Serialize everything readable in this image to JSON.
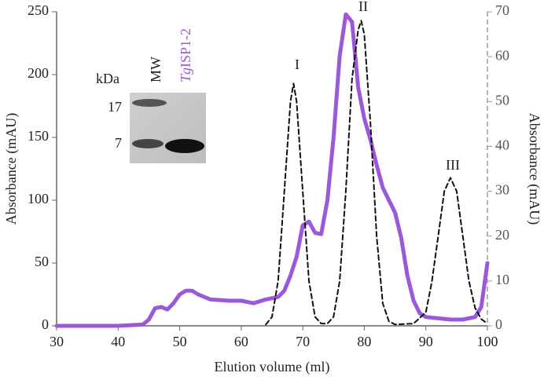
{
  "chart_data": {
    "type": "line",
    "xlabel": "Elution volume (ml)",
    "ylabel": "Absorbance (mAU)",
    "y2label": "Absorbance (mAU)",
    "xlim": [
      30,
      100
    ],
    "xticks": [
      30,
      40,
      50,
      60,
      70,
      80,
      90,
      100
    ],
    "ylim": [
      0,
      250
    ],
    "yticks": [
      0,
      50,
      100,
      150,
      200,
      250
    ],
    "y2lim": [
      0,
      70
    ],
    "y2ticks": [
      0,
      10,
      20,
      30,
      40,
      50,
      60,
      70
    ],
    "series": [
      {
        "color": "#9b59d9",
        "axis": "y",
        "dashed": false,
        "x": [
          30,
          40,
          44,
          45,
          46,
          47,
          48,
          49,
          50,
          51,
          52,
          53,
          55,
          58,
          60,
          62,
          64,
          66,
          67,
          68,
          69,
          70,
          71,
          72,
          73,
          74,
          75,
          76,
          77,
          78,
          79,
          80,
          81,
          82,
          83,
          84,
          85,
          86,
          87,
          88,
          89,
          90,
          92,
          94,
          96,
          98,
          99,
          100
        ],
        "values": [
          0,
          0,
          1,
          5,
          14,
          15,
          13,
          18,
          25,
          28,
          28,
          25,
          21,
          20,
          20,
          18,
          21,
          23,
          28,
          40,
          55,
          80,
          83,
          74,
          73,
          100,
          150,
          215,
          248,
          242,
          190,
          165,
          148,
          128,
          110,
          100,
          90,
          70,
          40,
          20,
          10,
          7,
          6,
          5,
          5,
          7,
          15,
          50
        ]
      },
      {
        "color": "#111111",
        "axis": "y2",
        "dashed": true,
        "x": [
          64,
          65,
          66,
          67,
          68,
          68.5,
          69,
          70,
          71,
          72,
          73,
          74,
          75,
          76,
          77,
          78,
          79,
          79.5,
          80,
          81,
          82,
          83,
          84,
          85,
          88,
          90,
          91,
          92,
          93,
          94,
          95,
          96,
          97,
          98,
          99,
          100
        ],
        "values": [
          0.3,
          2,
          10,
          30,
          50,
          54,
          50,
          30,
          10,
          2,
          0.5,
          0.5,
          2,
          10,
          30,
          55,
          66,
          68,
          65,
          45,
          20,
          5,
          1,
          0.3,
          0.5,
          3,
          10,
          20,
          30,
          33,
          30,
          20,
          10,
          4,
          1.5,
          0.5
        ]
      }
    ],
    "annotations": [
      "I",
      "II",
      "III"
    ],
    "inset": {
      "unit": "kDa",
      "lane1": "MW",
      "lane2_italic": "Tg",
      "lane2": "ISP1-2",
      "markers": [
        "17",
        "7"
      ]
    }
  }
}
